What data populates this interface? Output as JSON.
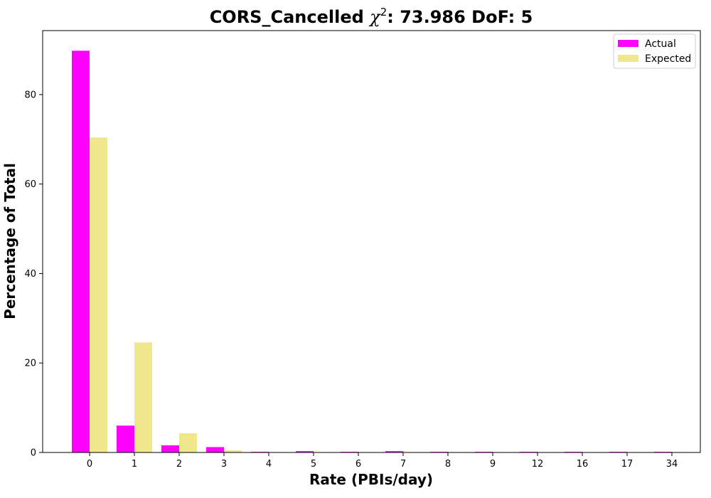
{
  "chart_data": {
    "type": "bar",
    "title_prefix": "CORS_Cancelled ",
    "title_chi": "χ",
    "title_sup": "2",
    "title_suffix": ": 73.986 DoF: 5",
    "xlabel": "Rate (PBIs/day)",
    "ylabel": "Percentage of Total",
    "categories": [
      "0",
      "1",
      "2",
      "3",
      "4",
      "5",
      "6",
      "7",
      "8",
      "9",
      "12",
      "16",
      "17",
      "34"
    ],
    "series": [
      {
        "name": "Actual",
        "color": "#ff00ff",
        "values": [
          89.8,
          6.0,
          1.6,
          1.2,
          0.15,
          0.3,
          0.15,
          0.3,
          0.15,
          0.15,
          0.15,
          0.15,
          0.15,
          0.15
        ]
      },
      {
        "name": "Expected",
        "color": "#f0e68c",
        "values": [
          70.4,
          24.6,
          4.3,
          0.5,
          0.04,
          0.003,
          0.0,
          0.0,
          0.0,
          0.0,
          0.0,
          0.0,
          0.0,
          0.0
        ]
      }
    ],
    "ylim": [
      0,
      94.3
    ],
    "yticks": [
      0,
      20,
      40,
      60,
      80
    ],
    "grid": false,
    "legend_position": "top-right"
  }
}
